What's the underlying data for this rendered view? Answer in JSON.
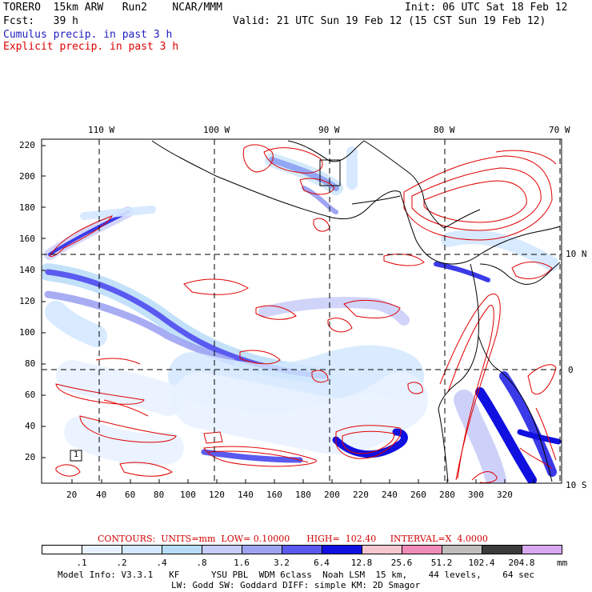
{
  "header": {
    "line1_left": "TORERO  15km ARW   Run2    NCAR/MMM",
    "line1_right": "Init: 06 UTC Sat 18 Feb 12",
    "line2_left": "Fcst:   39 h",
    "line2_right": "Valid: 21 UTC Sun 19 Feb 12 (15 CST Sun 19 Feb 12)",
    "cumulus_label": "Cumulus precip. in past 3 h",
    "explicit_label": "Explicit precip. in past 3 h",
    "cumulus_color": "#2020c0",
    "explicit_color": "#e00000"
  },
  "map": {
    "lon_labels": [
      "110 W",
      "100 W",
      "90 W",
      "80 W",
      "70 W"
    ],
    "lat_labels": [
      "10 N",
      "0",
      "10 S"
    ],
    "x_ticks": [
      "20",
      "40",
      "60",
      "80",
      "100",
      "120",
      "140",
      "160",
      "180",
      "200",
      "220",
      "240",
      "260",
      "280",
      "300",
      "320"
    ],
    "y_ticks": [
      "220",
      "200",
      "180",
      "160",
      "140",
      "120",
      "100",
      "80",
      "60",
      "40",
      "20"
    ],
    "box_label": "1"
  },
  "contours": {
    "caption": "CONTOURS:  UNITS=mm  LOW= 0.10000      HIGH=  102.40     INTERVAL=X  4.0000"
  },
  "colorbar": {
    "labels": [
      ".1",
      ".2",
      ".4",
      ".8",
      "1.6",
      "3.2",
      "6.4",
      "12.8",
      "25.6",
      "51.2",
      "102.4",
      "204.8"
    ],
    "colors": [
      "#ffffff",
      "#e8f2ff",
      "#d4e8ff",
      "#b8dcf8",
      "#c8ccf8",
      "#9fa4f2",
      "#5a5af0",
      "#1010e0",
      "#f7c6cf",
      "#f08cb8",
      "#c0bdbd",
      "#3c3c3c",
      "#d8a8f0"
    ],
    "unit": "mm"
  },
  "footer": {
    "line1": "Model Info: V3.3.1   KF      YSU PBL  WDM 6class  Noah LSM  15 km,    44 levels,    64 sec",
    "line2": "LW: Godd SW: Goddard DIFF: simple KM: 2D Smagor"
  }
}
